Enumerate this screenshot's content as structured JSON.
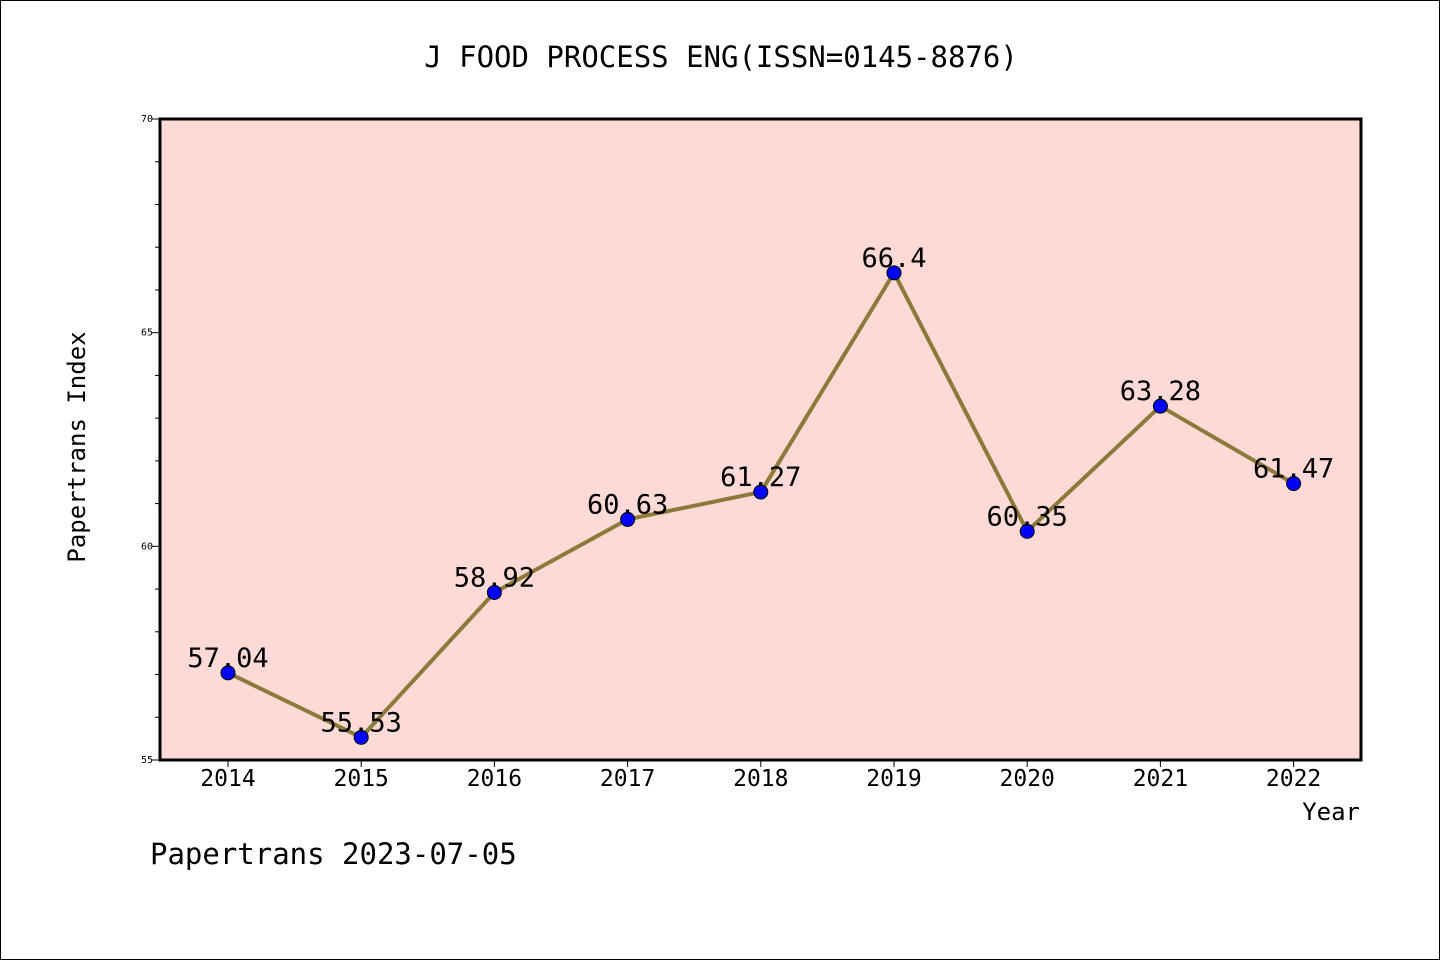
{
  "chart_data": {
    "type": "line",
    "title": "J FOOD PROCESS ENG(ISSN=0145-8876)",
    "xlabel": "Year",
    "ylabel": "Papertrans Index",
    "categories": [
      "2014",
      "2015",
      "2016",
      "2017",
      "2018",
      "2019",
      "2020",
      "2021",
      "2022"
    ],
    "series": [
      {
        "values": [
          57.04,
          55.53,
          58.92,
          60.63,
          61.27,
          66.4,
          60.35,
          63.28,
          61.47
        ],
        "labels": [
          "57.04",
          "55.53",
          "58.92",
          "60.63",
          "61.27",
          "66.4",
          "60.35",
          "63.28",
          "61.47"
        ]
      }
    ],
    "ylim": [
      55,
      70
    ],
    "yticks": [
      "55",
      "60",
      "65",
      "70"
    ],
    "grid": false,
    "colors": {
      "plot_background": "#fddad6",
      "line": "#8b7a3a",
      "marker": "#0000ff"
    }
  },
  "footer": {
    "text": "Papertrans 2023-07-05"
  }
}
